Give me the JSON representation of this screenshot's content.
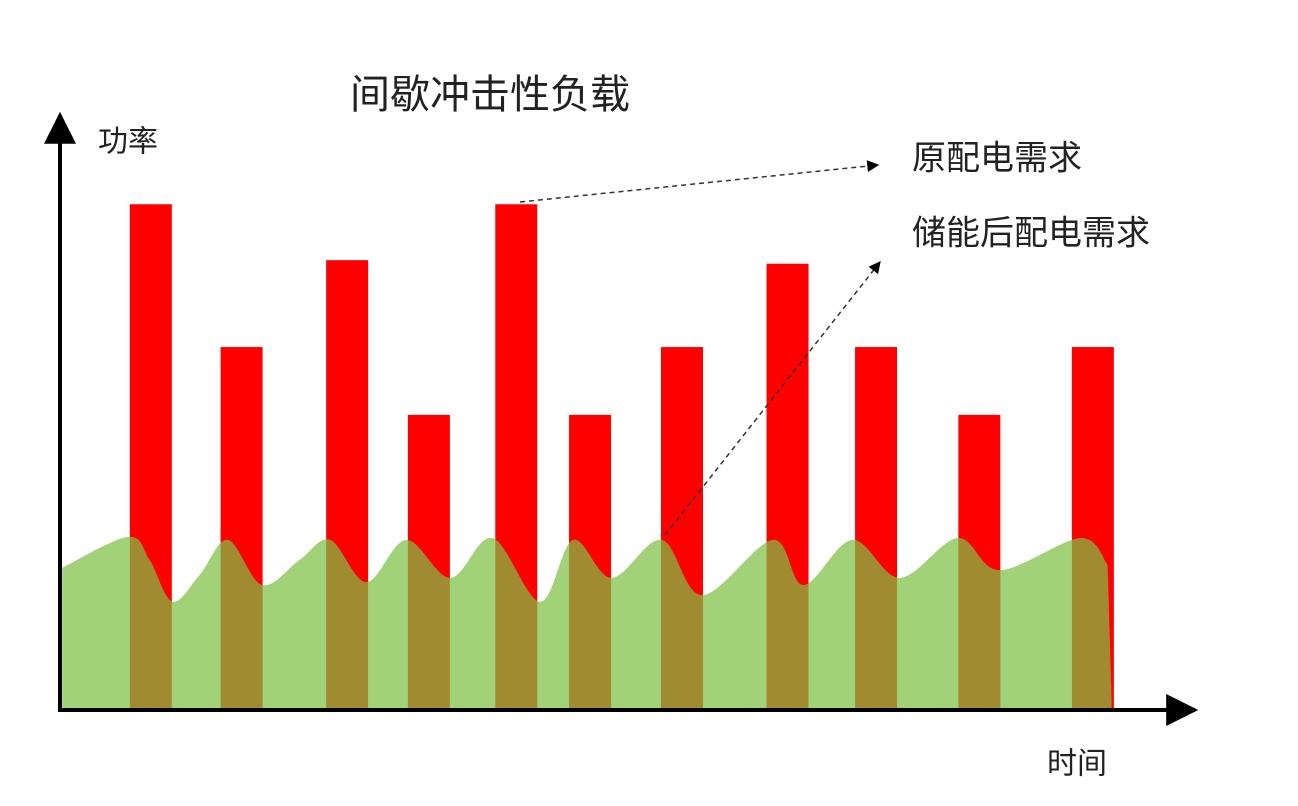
{
  "chart_data": {
    "type": "bar",
    "title": "间歇冲击性负载",
    "y_label": "功率",
    "x_label": "时间",
    "xlim": [
      0,
      100
    ],
    "ylim": [
      0,
      100
    ],
    "series": [
      {
        "name": "原配电需求",
        "type": "bar",
        "color": "#ff0000",
        "x": [
          8.0,
          16.0,
          25.3,
          32.5,
          40.2,
          46.7,
          54.8,
          64.1,
          71.9,
          81.0,
          91.0
        ],
        "values": [
          85,
          61,
          75.6,
          49.6,
          85,
          49.6,
          61,
          75,
          61,
          49.6,
          61
        ]
      },
      {
        "name": "储能后配电需求",
        "type": "area",
        "color": "#7dc142",
        "x": [
          0.2,
          6.0,
          7.9,
          9.9,
          12.3,
          14.8,
          17.8,
          21.1,
          23.8,
          27.0,
          30.5,
          34.4,
          38.1,
          42.3,
          45.2,
          48.6,
          53.0,
          56.6,
          62.8,
          65.5,
          69.8,
          74.0,
          79.1,
          82.8,
          89.9,
          92.3
        ],
        "values": [
          23.9,
          29.1,
          25.2,
          18.2,
          22.7,
          28.6,
          21.0,
          25.2,
          28.6,
          21.5,
          28.6,
          22.2,
          28.9,
          18.2,
          28.6,
          22.2,
          28.6,
          19.3,
          28.6,
          21.0,
          28.6,
          22.2,
          28.9,
          23.5,
          28.9,
          24.4
        ]
      }
    ]
  }
}
